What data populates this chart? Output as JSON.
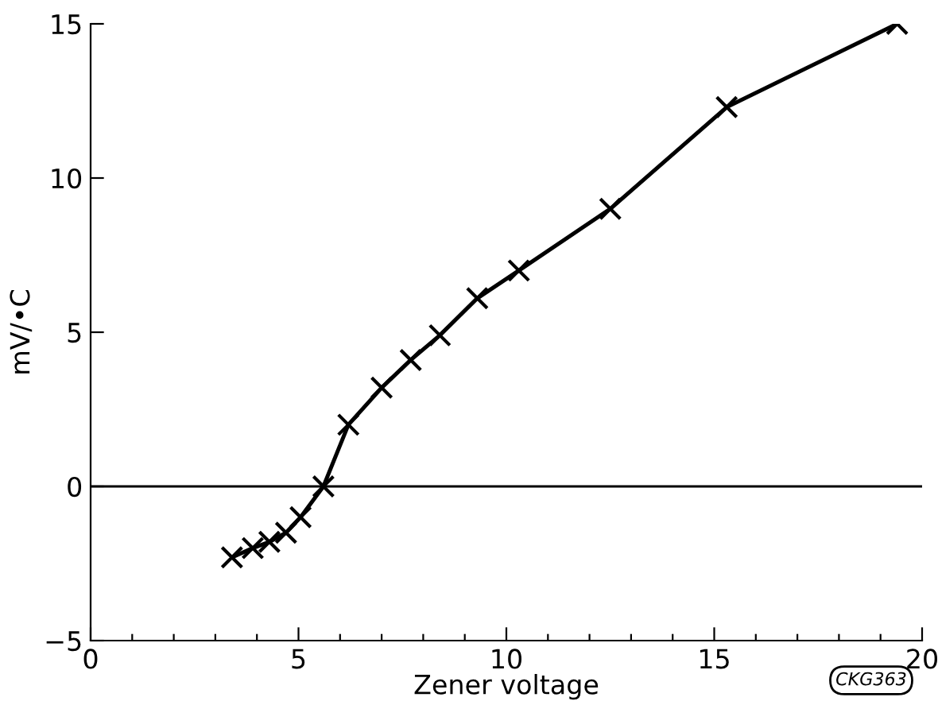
{
  "chart_data": {
    "type": "line",
    "xlabel": "Zener voltage",
    "ylabel": "mV/•C",
    "x": [
      3.4,
      3.9,
      4.3,
      4.7,
      5.05,
      5.6,
      6.2,
      7.0,
      7.7,
      8.4,
      9.3,
      10.3,
      12.5,
      15.3,
      19.4
    ],
    "series": [
      {
        "color": "#000000",
        "values": [
          -2.3,
          -2.0,
          -1.8,
          -1.5,
          -1.0,
          0,
          2.0,
          3.2,
          4.1,
          4.9,
          6.1,
          7.0,
          9.0,
          12.3,
          15.0
        ]
      }
    ],
    "marker": "cross",
    "line_style": "solid",
    "grid": false,
    "legend": false,
    "xlim": [
      0,
      20
    ],
    "ylim": [
      -5,
      15
    ],
    "xticks": [
      0,
      {
        "value": 1,
        "label": null
      },
      {
        "value": 2,
        "label": null
      },
      {
        "value": 3,
        "label": null
      },
      {
        "value": 4,
        "label": null
      },
      5,
      {
        "value": 6,
        "label": null
      },
      {
        "value": 7,
        "label": null
      },
      {
        "value": 8,
        "label": null
      },
      {
        "value": 9,
        "label": null
      },
      10,
      {
        "value": 11,
        "label": null
      },
      {
        "value": 12,
        "label": null
      },
      {
        "value": 13,
        "label": null
      },
      {
        "value": 14,
        "label": null
      },
      15,
      {
        "value": 16,
        "label": null
      },
      {
        "value": 17,
        "label": null
      },
      {
        "value": 18,
        "label": null
      },
      {
        "value": 19,
        "label": null
      },
      20
    ],
    "yticks": [
      {
        "value": -5,
        "label": "−5"
      },
      0,
      5,
      10,
      15
    ],
    "ref_lines": [
      {
        "axis": "y",
        "value": 0,
        "color": "#000000",
        "line_style": "solid"
      }
    ],
    "annotations": [
      "CKG363"
    ]
  }
}
